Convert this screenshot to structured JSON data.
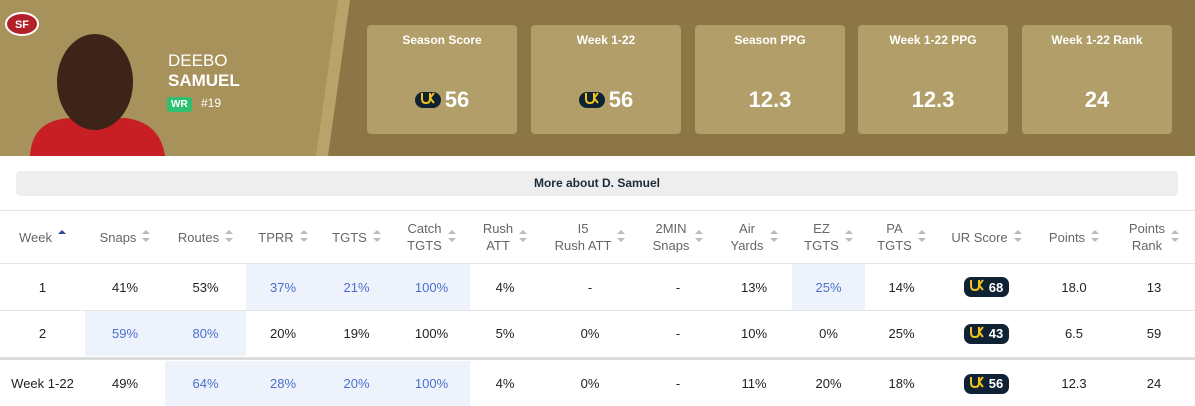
{
  "team_logo": "SF",
  "player": {
    "first_name": "DEEBO",
    "last_name": "SAMUEL",
    "position": "WR",
    "number": "#19"
  },
  "cards": [
    {
      "title": "Season Score",
      "value": "56",
      "badge": true
    },
    {
      "title": "Week 1-22",
      "value": "56",
      "badge": true
    },
    {
      "title": "Season PPG",
      "value": "12.3",
      "badge": false
    },
    {
      "title": "Week 1-22 PPG",
      "value": "12.3",
      "badge": false
    },
    {
      "title": "Week 1-22 Rank",
      "value": "24",
      "badge": false
    }
  ],
  "more_button": "More about D. Samuel",
  "table": {
    "columns": [
      [
        "Week"
      ],
      [
        "Snaps"
      ],
      [
        "Routes"
      ],
      [
        "TPRR"
      ],
      [
        "TGTS"
      ],
      [
        "Catch",
        "TGTS"
      ],
      [
        "Rush",
        "ATT"
      ],
      [
        "I5",
        "Rush ATT"
      ],
      [
        "2MIN",
        "Snaps"
      ],
      [
        "Air",
        "Yards"
      ],
      [
        "EZ",
        "TGTS"
      ],
      [
        "PA",
        "TGTS"
      ],
      [
        "UR Score"
      ],
      [
        "Points"
      ],
      [
        "Points",
        "Rank"
      ]
    ],
    "sorted_column": 0,
    "badge_column": 12,
    "rows": [
      [
        {
          "text": "1"
        },
        {
          "text": "41%"
        },
        {
          "text": "53%"
        },
        {
          "text": "37%",
          "highlight": true
        },
        {
          "text": "21%",
          "highlight": true
        },
        {
          "text": "100%",
          "highlight": true
        },
        {
          "text": "4%"
        },
        {
          "text": "-"
        },
        {
          "text": "-"
        },
        {
          "text": "13%"
        },
        {
          "text": "25%",
          "highlight": true
        },
        {
          "text": "14%"
        },
        {
          "text": "68"
        },
        {
          "text": "18.0"
        },
        {
          "text": "13"
        }
      ],
      [
        {
          "text": "2"
        },
        {
          "text": "59%",
          "highlight": true
        },
        {
          "text": "80%",
          "highlight": true
        },
        {
          "text": "20%"
        },
        {
          "text": "19%"
        },
        {
          "text": "100%"
        },
        {
          "text": "5%"
        },
        {
          "text": "0%"
        },
        {
          "text": "-"
        },
        {
          "text": "10%"
        },
        {
          "text": "0%"
        },
        {
          "text": "25%"
        },
        {
          "text": "43"
        },
        {
          "text": "6.5"
        },
        {
          "text": "59"
        }
      ]
    ],
    "total_row": [
      {
        "text": "Week 1-22"
      },
      {
        "text": "49%"
      },
      {
        "text": "64%",
        "highlight": true
      },
      {
        "text": "28%",
        "highlight": true
      },
      {
        "text": "20%",
        "highlight": true
      },
      {
        "text": "100%",
        "highlight": true
      },
      {
        "text": "4%"
      },
      {
        "text": "0%"
      },
      {
        "text": "-"
      },
      {
        "text": "11%"
      },
      {
        "text": "20%"
      },
      {
        "text": "18%"
      },
      {
        "text": "56"
      },
      {
        "text": "12.3"
      },
      {
        "text": "24"
      }
    ]
  }
}
